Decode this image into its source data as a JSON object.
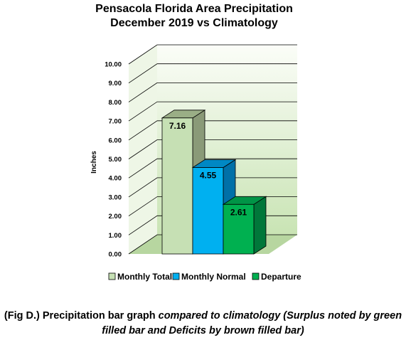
{
  "chart_data": {
    "type": "bar",
    "title": "Pensacola Florida Area Precipitation",
    "subtitle": "December 2019 vs Climatology",
    "ylabel": "Inches",
    "xlabel": "",
    "ylim": [
      0,
      10
    ],
    "yticks": [
      "0.00",
      "1.00",
      "2.00",
      "3.00",
      "4.00",
      "5.00",
      "6.00",
      "7.00",
      "8.00",
      "9.00",
      "10.00"
    ],
    "grid": true,
    "legend_position": "bottom",
    "series": [
      {
        "name": "Monthly Total",
        "value": 7.16,
        "label": "7.16",
        "color": "#c6e0b4",
        "side": "#8a9a78",
        "top": "#9aae86"
      },
      {
        "name": "Monthly Normal",
        "value": 4.55,
        "label": "4.55",
        "color": "#00b0f0",
        "side": "#0070a8",
        "top": "#0088c4"
      },
      {
        "name": "Departure",
        "value": 2.61,
        "label": "2.61",
        "color": "#00b050",
        "side": "#00773a",
        "top": "#009446"
      }
    ]
  },
  "caption": {
    "part1": "(Fig D.) Precipitation bar graph ",
    "part2": "compared to climatology (Surplus noted by green filled bar and Deficits by brown filled bar)"
  }
}
